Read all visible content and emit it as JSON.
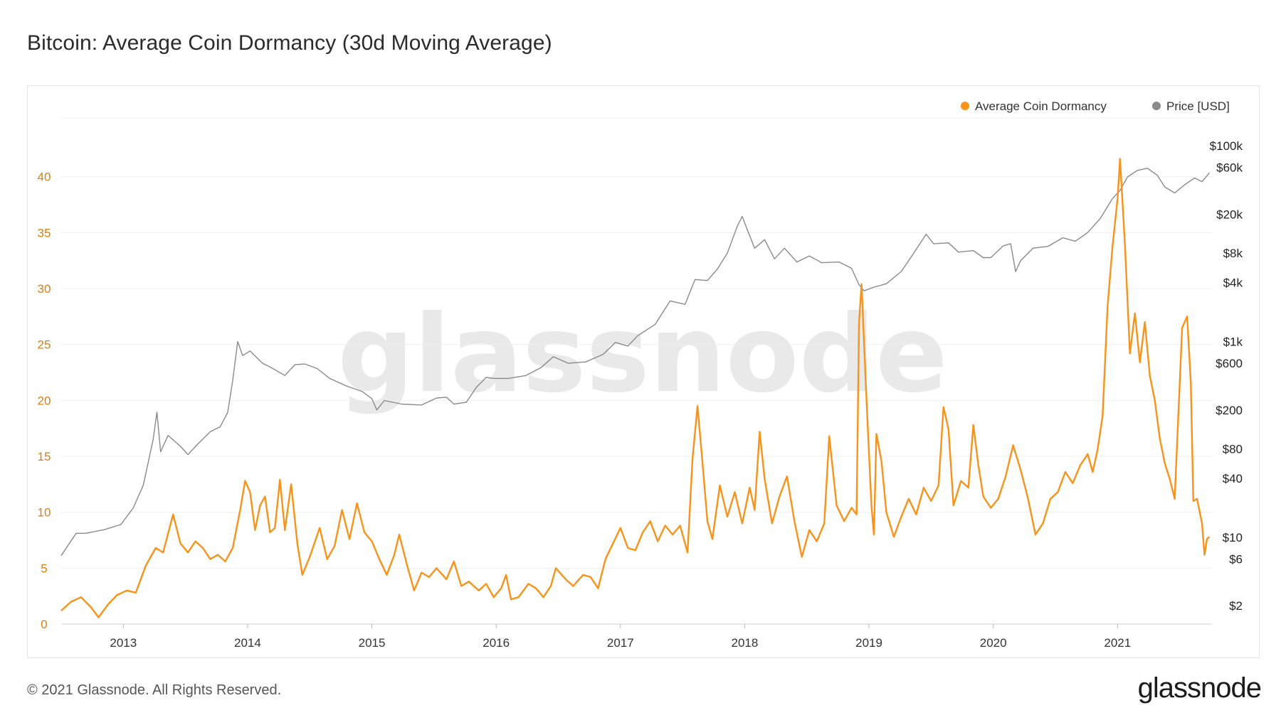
{
  "header": {
    "title": "Bitcoin: Average Coin Dormancy (30d Moving Average)"
  },
  "footer": {
    "copyright": "© 2021 Glassnode. All Rights Reserved.",
    "logo": "glassnode"
  },
  "watermark": "glassnode",
  "chart_data": {
    "type": "line",
    "title": "Bitcoin: Average Coin Dormancy (30d Moving Average)",
    "x_ticks": [
      "2013",
      "2014",
      "2015",
      "2016",
      "2017",
      "2018",
      "2019",
      "2020",
      "2021"
    ],
    "xlim": [
      2012.5,
      2021.76
    ],
    "y_left": {
      "ticks": [
        0,
        5,
        10,
        15,
        20,
        25,
        30,
        35,
        40
      ],
      "ylim": [
        0,
        45
      ],
      "color": "#d97f0f"
    },
    "y_right": {
      "scale": "log",
      "ticks": [
        "$100k",
        "$60k",
        "$20k",
        "$8k",
        "$4k",
        "$1k",
        "$600",
        "$200",
        "$80",
        "$40",
        "$10",
        "$6",
        "$2"
      ],
      "tick_values": [
        100000,
        60000,
        20000,
        8000,
        4000,
        1000,
        600,
        200,
        80,
        40,
        10,
        6,
        2
      ],
      "color": "#222222"
    },
    "legend_position": "top-right",
    "series": [
      {
        "name": "Average Coin Dormancy",
        "axis": "left",
        "color": "#f7931a",
        "points": [
          [
            2012.5,
            1.2
          ],
          [
            2012.58,
            2.0
          ],
          [
            2012.66,
            2.4
          ],
          [
            2012.74,
            1.5
          ],
          [
            2012.8,
            0.6
          ],
          [
            2012.88,
            1.8
          ],
          [
            2012.95,
            2.6
          ],
          [
            2013.03,
            3.0
          ],
          [
            2013.1,
            2.8
          ],
          [
            2013.18,
            5.2
          ],
          [
            2013.26,
            6.8
          ],
          [
            2013.32,
            6.4
          ],
          [
            2013.4,
            9.8
          ],
          [
            2013.46,
            7.2
          ],
          [
            2013.52,
            6.4
          ],
          [
            2013.58,
            7.4
          ],
          [
            2013.64,
            6.8
          ],
          [
            2013.7,
            5.8
          ],
          [
            2013.76,
            6.2
          ],
          [
            2013.82,
            5.6
          ],
          [
            2013.88,
            6.8
          ],
          [
            2013.94,
            10.2
          ],
          [
            2013.98,
            12.8
          ],
          [
            2014.02,
            11.8
          ],
          [
            2014.06,
            8.4
          ],
          [
            2014.1,
            10.6
          ],
          [
            2014.14,
            11.4
          ],
          [
            2014.18,
            8.2
          ],
          [
            2014.22,
            8.6
          ],
          [
            2014.26,
            12.9
          ],
          [
            2014.3,
            8.4
          ],
          [
            2014.35,
            12.5
          ],
          [
            2014.4,
            7.2
          ],
          [
            2014.44,
            4.4
          ],
          [
            2014.5,
            6.0
          ],
          [
            2014.58,
            8.6
          ],
          [
            2014.64,
            5.8
          ],
          [
            2014.7,
            7.0
          ],
          [
            2014.76,
            10.2
          ],
          [
            2014.82,
            7.6
          ],
          [
            2014.88,
            10.8
          ],
          [
            2014.94,
            8.2
          ],
          [
            2015.0,
            7.4
          ],
          [
            2015.06,
            5.8
          ],
          [
            2015.12,
            4.4
          ],
          [
            2015.18,
            6.2
          ],
          [
            2015.22,
            8.0
          ],
          [
            2015.28,
            5.4
          ],
          [
            2015.34,
            3.0
          ],
          [
            2015.4,
            4.6
          ],
          [
            2015.46,
            4.2
          ],
          [
            2015.52,
            5.0
          ],
          [
            2015.6,
            4.0
          ],
          [
            2015.66,
            5.6
          ],
          [
            2015.72,
            3.4
          ],
          [
            2015.78,
            3.8
          ],
          [
            2015.86,
            3.0
          ],
          [
            2015.92,
            3.6
          ],
          [
            2015.98,
            2.4
          ],
          [
            2016.04,
            3.2
          ],
          [
            2016.08,
            4.4
          ],
          [
            2016.12,
            2.2
          ],
          [
            2016.18,
            2.4
          ],
          [
            2016.26,
            3.6
          ],
          [
            2016.32,
            3.2
          ],
          [
            2016.38,
            2.4
          ],
          [
            2016.44,
            3.4
          ],
          [
            2016.48,
            5.0
          ],
          [
            2016.56,
            4.0
          ],
          [
            2016.62,
            3.4
          ],
          [
            2016.7,
            4.4
          ],
          [
            2016.76,
            4.2
          ],
          [
            2016.82,
            3.2
          ],
          [
            2016.88,
            5.8
          ],
          [
            2016.94,
            7.2
          ],
          [
            2017.0,
            8.6
          ],
          [
            2017.06,
            6.8
          ],
          [
            2017.12,
            6.6
          ],
          [
            2017.18,
            8.2
          ],
          [
            2017.24,
            9.2
          ],
          [
            2017.3,
            7.4
          ],
          [
            2017.36,
            8.8
          ],
          [
            2017.42,
            8.0
          ],
          [
            2017.48,
            8.8
          ],
          [
            2017.54,
            6.4
          ],
          [
            2017.58,
            14.8
          ],
          [
            2017.62,
            19.5
          ],
          [
            2017.66,
            14.5
          ],
          [
            2017.7,
            9.2
          ],
          [
            2017.74,
            7.6
          ],
          [
            2017.8,
            12.4
          ],
          [
            2017.86,
            9.6
          ],
          [
            2017.92,
            11.8
          ],
          [
            2017.98,
            9.0
          ],
          [
            2018.04,
            12.2
          ],
          [
            2018.08,
            10.2
          ],
          [
            2018.12,
            17.2
          ],
          [
            2018.16,
            13.0
          ],
          [
            2018.22,
            9.0
          ],
          [
            2018.28,
            11.4
          ],
          [
            2018.34,
            13.2
          ],
          [
            2018.4,
            9.2
          ],
          [
            2018.46,
            6.0
          ],
          [
            2018.52,
            8.4
          ],
          [
            2018.58,
            7.4
          ],
          [
            2018.64,
            9.0
          ],
          [
            2018.68,
            16.8
          ],
          [
            2018.74,
            10.6
          ],
          [
            2018.8,
            9.2
          ],
          [
            2018.86,
            10.4
          ],
          [
            2018.9,
            9.8
          ],
          [
            2018.92,
            27.0
          ],
          [
            2018.94,
            30.4
          ],
          [
            2018.98,
            20.0
          ],
          [
            2019.02,
            10.6
          ],
          [
            2019.04,
            8.0
          ],
          [
            2019.06,
            17.0
          ],
          [
            2019.1,
            14.6
          ],
          [
            2019.14,
            10.0
          ],
          [
            2019.2,
            7.8
          ],
          [
            2019.26,
            9.6
          ],
          [
            2019.32,
            11.2
          ],
          [
            2019.38,
            9.8
          ],
          [
            2019.44,
            12.2
          ],
          [
            2019.5,
            11.0
          ],
          [
            2019.56,
            12.4
          ],
          [
            2019.6,
            19.4
          ],
          [
            2019.64,
            17.4
          ],
          [
            2019.68,
            10.6
          ],
          [
            2019.74,
            12.8
          ],
          [
            2019.8,
            12.2
          ],
          [
            2019.84,
            17.8
          ],
          [
            2019.88,
            14.2
          ],
          [
            2019.92,
            11.4
          ],
          [
            2019.98,
            10.4
          ],
          [
            2020.04,
            11.2
          ],
          [
            2020.1,
            13.2
          ],
          [
            2020.16,
            16.0
          ],
          [
            2020.22,
            13.8
          ],
          [
            2020.28,
            11.2
          ],
          [
            2020.34,
            8.0
          ],
          [
            2020.4,
            9.0
          ],
          [
            2020.46,
            11.2
          ],
          [
            2020.52,
            11.8
          ],
          [
            2020.58,
            13.6
          ],
          [
            2020.64,
            12.6
          ],
          [
            2020.7,
            14.2
          ],
          [
            2020.76,
            15.2
          ],
          [
            2020.8,
            13.6
          ],
          [
            2020.84,
            15.6
          ],
          [
            2020.88,
            18.6
          ],
          [
            2020.92,
            28.4
          ],
          [
            2020.96,
            33.8
          ],
          [
            2021.0,
            38.0
          ],
          [
            2021.02,
            41.6
          ],
          [
            2021.06,
            33.8
          ],
          [
            2021.1,
            24.2
          ],
          [
            2021.14,
            27.8
          ],
          [
            2021.18,
            23.4
          ],
          [
            2021.22,
            27.0
          ],
          [
            2021.26,
            22.2
          ],
          [
            2021.3,
            20.0
          ],
          [
            2021.34,
            16.6
          ],
          [
            2021.38,
            14.4
          ],
          [
            2021.42,
            13.0
          ],
          [
            2021.46,
            11.2
          ],
          [
            2021.52,
            26.5
          ],
          [
            2021.56,
            27.5
          ],
          [
            2021.59,
            21.5
          ],
          [
            2021.61,
            11.0
          ],
          [
            2021.64,
            11.2
          ],
          [
            2021.68,
            9.0
          ],
          [
            2021.7,
            6.2
          ],
          [
            2021.72,
            7.6
          ],
          [
            2021.74,
            7.8
          ]
        ]
      },
      {
        "name": "Price [USD]",
        "axis": "right",
        "color": "#8a8a8a",
        "points": [
          [
            2012.5,
            6.5
          ],
          [
            2012.62,
            11
          ],
          [
            2012.7,
            11
          ],
          [
            2012.85,
            12
          ],
          [
            2012.98,
            13.5
          ],
          [
            2013.08,
            20
          ],
          [
            2013.16,
            34
          ],
          [
            2013.24,
            100
          ],
          [
            2013.27,
            190
          ],
          [
            2013.3,
            75
          ],
          [
            2013.36,
            110
          ],
          [
            2013.46,
            85
          ],
          [
            2013.52,
            70
          ],
          [
            2013.6,
            90
          ],
          [
            2013.7,
            120
          ],
          [
            2013.78,
            135
          ],
          [
            2013.84,
            190
          ],
          [
            2013.88,
            400
          ],
          [
            2013.92,
            1000
          ],
          [
            2013.96,
            720
          ],
          [
            2014.02,
            800
          ],
          [
            2014.12,
            600
          ],
          [
            2014.18,
            550
          ],
          [
            2014.3,
            450
          ],
          [
            2014.38,
            580
          ],
          [
            2014.46,
            590
          ],
          [
            2014.56,
            530
          ],
          [
            2014.66,
            420
          ],
          [
            2014.8,
            350
          ],
          [
            2014.92,
            310
          ],
          [
            2015.0,
            260
          ],
          [
            2015.04,
            200
          ],
          [
            2015.1,
            250
          ],
          [
            2015.24,
            230
          ],
          [
            2015.4,
            225
          ],
          [
            2015.52,
            265
          ],
          [
            2015.6,
            270
          ],
          [
            2015.66,
            230
          ],
          [
            2015.76,
            240
          ],
          [
            2015.84,
            340
          ],
          [
            2015.92,
            430
          ],
          [
            2015.98,
            420
          ],
          [
            2016.1,
            420
          ],
          [
            2016.24,
            450
          ],
          [
            2016.36,
            540
          ],
          [
            2016.46,
            700
          ],
          [
            2016.58,
            600
          ],
          [
            2016.72,
            620
          ],
          [
            2016.86,
            740
          ],
          [
            2016.96,
            980
          ],
          [
            2017.06,
            900
          ],
          [
            2017.14,
            1150
          ],
          [
            2017.28,
            1500
          ],
          [
            2017.4,
            2600
          ],
          [
            2017.52,
            2400
          ],
          [
            2017.6,
            4300
          ],
          [
            2017.7,
            4200
          ],
          [
            2017.78,
            5500
          ],
          [
            2017.86,
            8000
          ],
          [
            2017.94,
            15000
          ],
          [
            2017.98,
            19000
          ],
          [
            2018.02,
            14000
          ],
          [
            2018.08,
            9000
          ],
          [
            2018.16,
            11000
          ],
          [
            2018.24,
            7000
          ],
          [
            2018.32,
            9000
          ],
          [
            2018.42,
            6500
          ],
          [
            2018.52,
            7500
          ],
          [
            2018.62,
            6400
          ],
          [
            2018.76,
            6500
          ],
          [
            2018.86,
            5600
          ],
          [
            2018.92,
            3800
          ],
          [
            2018.96,
            3300
          ],
          [
            2019.04,
            3600
          ],
          [
            2019.14,
            3900
          ],
          [
            2019.26,
            5200
          ],
          [
            2019.36,
            8000
          ],
          [
            2019.46,
            12500
          ],
          [
            2019.52,
            10000
          ],
          [
            2019.64,
            10200
          ],
          [
            2019.72,
            8200
          ],
          [
            2019.84,
            8500
          ],
          [
            2019.92,
            7200
          ],
          [
            2019.98,
            7200
          ],
          [
            2020.08,
            9500
          ],
          [
            2020.14,
            10000
          ],
          [
            2020.18,
            5200
          ],
          [
            2020.22,
            6700
          ],
          [
            2020.32,
            9000
          ],
          [
            2020.44,
            9400
          ],
          [
            2020.56,
            11500
          ],
          [
            2020.66,
            10600
          ],
          [
            2020.76,
            13000
          ],
          [
            2020.86,
            18000
          ],
          [
            2020.96,
            29000
          ],
          [
            2021.02,
            35000
          ],
          [
            2021.08,
            48000
          ],
          [
            2021.16,
            56000
          ],
          [
            2021.24,
            59000
          ],
          [
            2021.32,
            50000
          ],
          [
            2021.38,
            38000
          ],
          [
            2021.46,
            33000
          ],
          [
            2021.54,
            40000
          ],
          [
            2021.62,
            47000
          ],
          [
            2021.68,
            43000
          ],
          [
            2021.74,
            53000
          ]
        ]
      }
    ]
  }
}
